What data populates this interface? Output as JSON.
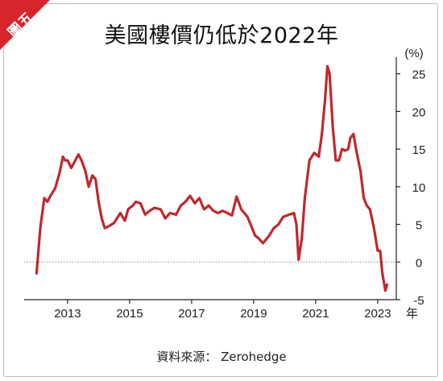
{
  "badge": "圖五",
  "source": "資料來源： Zerohedge",
  "chart_data": {
    "type": "line",
    "title": "美國樓價仍低於2022年",
    "ylabel": "(%)",
    "xlabel": "年",
    "ylim": [
      -5,
      27
    ],
    "xlim": [
      2011.6,
      2023.6
    ],
    "yticks": [
      "25",
      "20",
      "15",
      "10",
      "5",
      "0",
      "-5"
    ],
    "ytick_values": [
      25,
      20,
      15,
      10,
      5,
      0,
      -5
    ],
    "xticks": [
      "2013",
      "2015",
      "2017",
      "2019",
      "2021",
      "2023"
    ],
    "xtick_values": [
      2013,
      2015,
      2017,
      2019,
      2021,
      2023
    ],
    "reference_line": 0,
    "line_color": "#c0282d",
    "x": [
      2012.0,
      2012.12,
      2012.25,
      2012.35,
      2012.45,
      2012.6,
      2012.75,
      2012.85,
      2012.92,
      2013.0,
      2013.12,
      2013.25,
      2013.35,
      2013.45,
      2013.58,
      2013.68,
      2013.8,
      2013.9,
      2014.0,
      2014.1,
      2014.2,
      2014.35,
      2014.5,
      2014.7,
      2014.85,
      2014.95,
      2015.1,
      2015.2,
      2015.35,
      2015.5,
      2015.65,
      2015.8,
      2016.0,
      2016.15,
      2016.3,
      2016.5,
      2016.65,
      2016.8,
      2016.95,
      2017.1,
      2017.25,
      2017.4,
      2017.55,
      2017.7,
      2017.85,
      2018.0,
      2018.15,
      2018.3,
      2018.45,
      2018.6,
      2018.8,
      2018.95,
      2019.05,
      2019.15,
      2019.3,
      2019.5,
      2019.65,
      2019.8,
      2019.95,
      2020.15,
      2020.3,
      2020.38,
      2020.45,
      2020.55,
      2020.65,
      2020.8,
      2020.95,
      2021.1,
      2021.2,
      2021.3,
      2021.38,
      2021.45,
      2021.55,
      2021.65,
      2021.75,
      2021.85,
      2021.95,
      2022.05,
      2022.12,
      2022.22,
      2022.3,
      2022.45,
      2022.55,
      2022.65,
      2022.75,
      2022.88,
      2023.0,
      2023.08,
      2023.15,
      2023.25,
      2023.3
    ],
    "values": [
      -1.5,
      4.5,
      8.5,
      8.0,
      8.8,
      9.8,
      12.0,
      14.0,
      13.5,
      13.5,
      12.5,
      13.5,
      14.3,
      13.5,
      12.0,
      10.0,
      11.5,
      11.0,
      8.0,
      5.8,
      4.5,
      4.8,
      5.2,
      6.5,
      5.5,
      7.0,
      7.5,
      8.0,
      7.8,
      6.3,
      6.8,
      7.2,
      7.0,
      5.8,
      6.5,
      6.3,
      7.5,
      8.0,
      8.8,
      7.8,
      8.5,
      7.0,
      7.5,
      6.8,
      6.5,
      6.8,
      6.5,
      6.2,
      8.7,
      7.0,
      6.0,
      4.5,
      3.5,
      3.2,
      2.5,
      3.5,
      4.5,
      5.0,
      6.0,
      6.3,
      6.5,
      5.0,
      0.3,
      3.0,
      8.5,
      13.5,
      14.5,
      14.0,
      17.0,
      21.5,
      26.0,
      25.0,
      18.0,
      13.5,
      13.5,
      15.0,
      14.8,
      15.0,
      16.5,
      17.0,
      15.0,
      12.0,
      8.5,
      7.5,
      7.0,
      4.5,
      1.5,
      1.5,
      -1.5,
      -3.8,
      -3.0
    ]
  }
}
